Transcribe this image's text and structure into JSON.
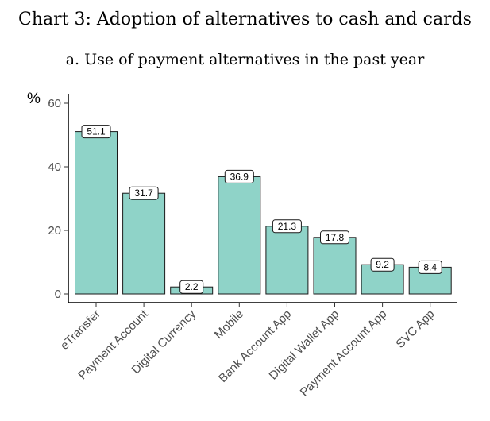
{
  "title": "Chart 3: Adoption of alternatives to cash and cards",
  "subtitle": "a. Use of payment alternatives in the past year",
  "chart_data": {
    "type": "bar",
    "title": "a. Use of payment alternatives in the past year",
    "ylabel": "%",
    "xlabel": "",
    "categories": [
      "eTransfer",
      "Payment Account",
      "Digital Currency",
      "Mobile",
      "Bank Account App",
      "Digital Wallet App",
      "Payment Account App",
      "SVC App"
    ],
    "values": [
      51.1,
      31.7,
      2.2,
      36.9,
      21.3,
      17.8,
      9.2,
      8.4
    ],
    "data_labels": [
      "51.1",
      "31.7",
      "2.2",
      "36.9",
      "21.3",
      "17.8",
      "9.2",
      "8.4"
    ],
    "yticks": [
      0,
      20,
      40,
      60
    ],
    "ytick_labels": [
      "0",
      "20",
      "40",
      "60"
    ],
    "ylim": [
      0,
      60
    ],
    "grid": false,
    "legend": "none",
    "bar_color": "#8fd3c8",
    "bar_edge_color": "#1a1a1a"
  }
}
